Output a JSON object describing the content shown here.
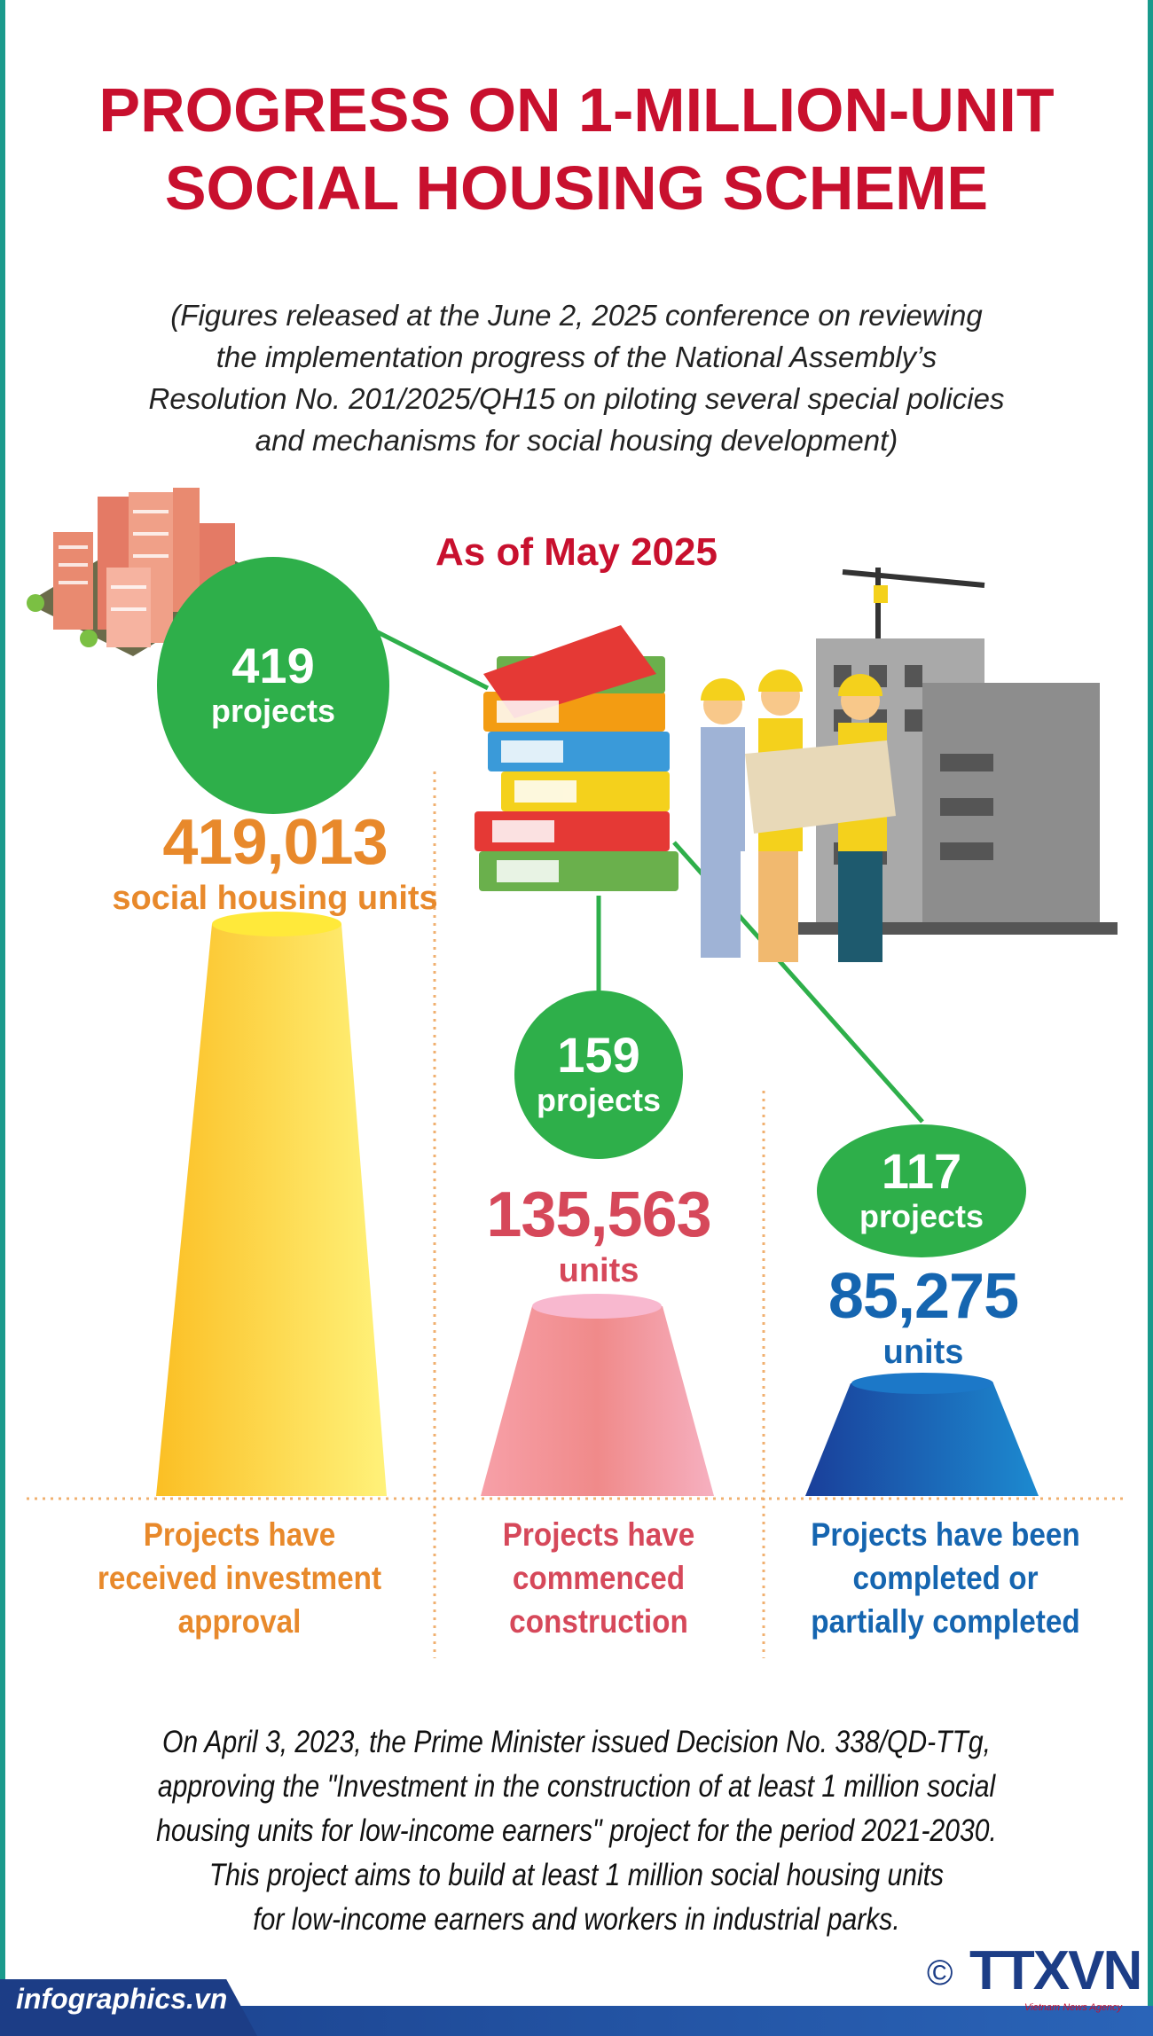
{
  "header": {
    "title_lines": [
      "PROGRESS ON 1-MILLION-UNIT",
      "SOCIAL HOUSING SCHEME"
    ],
    "subtitle_lines": [
      "(Figures released at the June 2, 2025 conference on reviewing",
      "the implementation progress of the National Assembly’s",
      "Resolution No. 201/2025/QH15 on piloting several special policies",
      "and mechanisms for social housing development)"
    ],
    "as_of": "As of May 2025"
  },
  "stages": [
    {
      "projects": "419",
      "projects_label": "projects",
      "units": "419,013",
      "units_label": "social housing units",
      "label_lines": [
        "Projects have",
        "received investment",
        "approval"
      ],
      "color": "#e8892b"
    },
    {
      "projects": "159",
      "projects_label": "projects",
      "units": "135,563",
      "units_label": "units",
      "label_lines": [
        "Projects have",
        "commenced",
        "construction"
      ],
      "color": "#d6485a"
    },
    {
      "projects": "117",
      "projects_label": "projects",
      "units": "85,275",
      "units_label": "units",
      "label_lines": [
        "Projects have been",
        "completed or",
        "partially completed"
      ],
      "color": "#1565b0"
    }
  ],
  "footnote_lines": [
    "On April 3, 2023, the Prime Minister issued Decision No. 338/QD-TTg,",
    "approving the \"Investment in the construction of at least 1 million social",
    "housing units for low-income earners\" project for the period 2021-2030.",
    "This project aims to build at least 1 million social housing units",
    "for low-income earners and workers in industrial parks."
  ],
  "footer": {
    "site": "infographics.vn",
    "copyright_symbol": "©",
    "logo_text": "TTXVN",
    "logo_subtext": "Vietnam News Agency"
  },
  "colors": {
    "title": "#c8102e",
    "bubble": "#2eaf4a",
    "yellow_cone": "#fde560",
    "pink_cone": "#f08a8a",
    "blue_cone": "#1a5fb0"
  }
}
